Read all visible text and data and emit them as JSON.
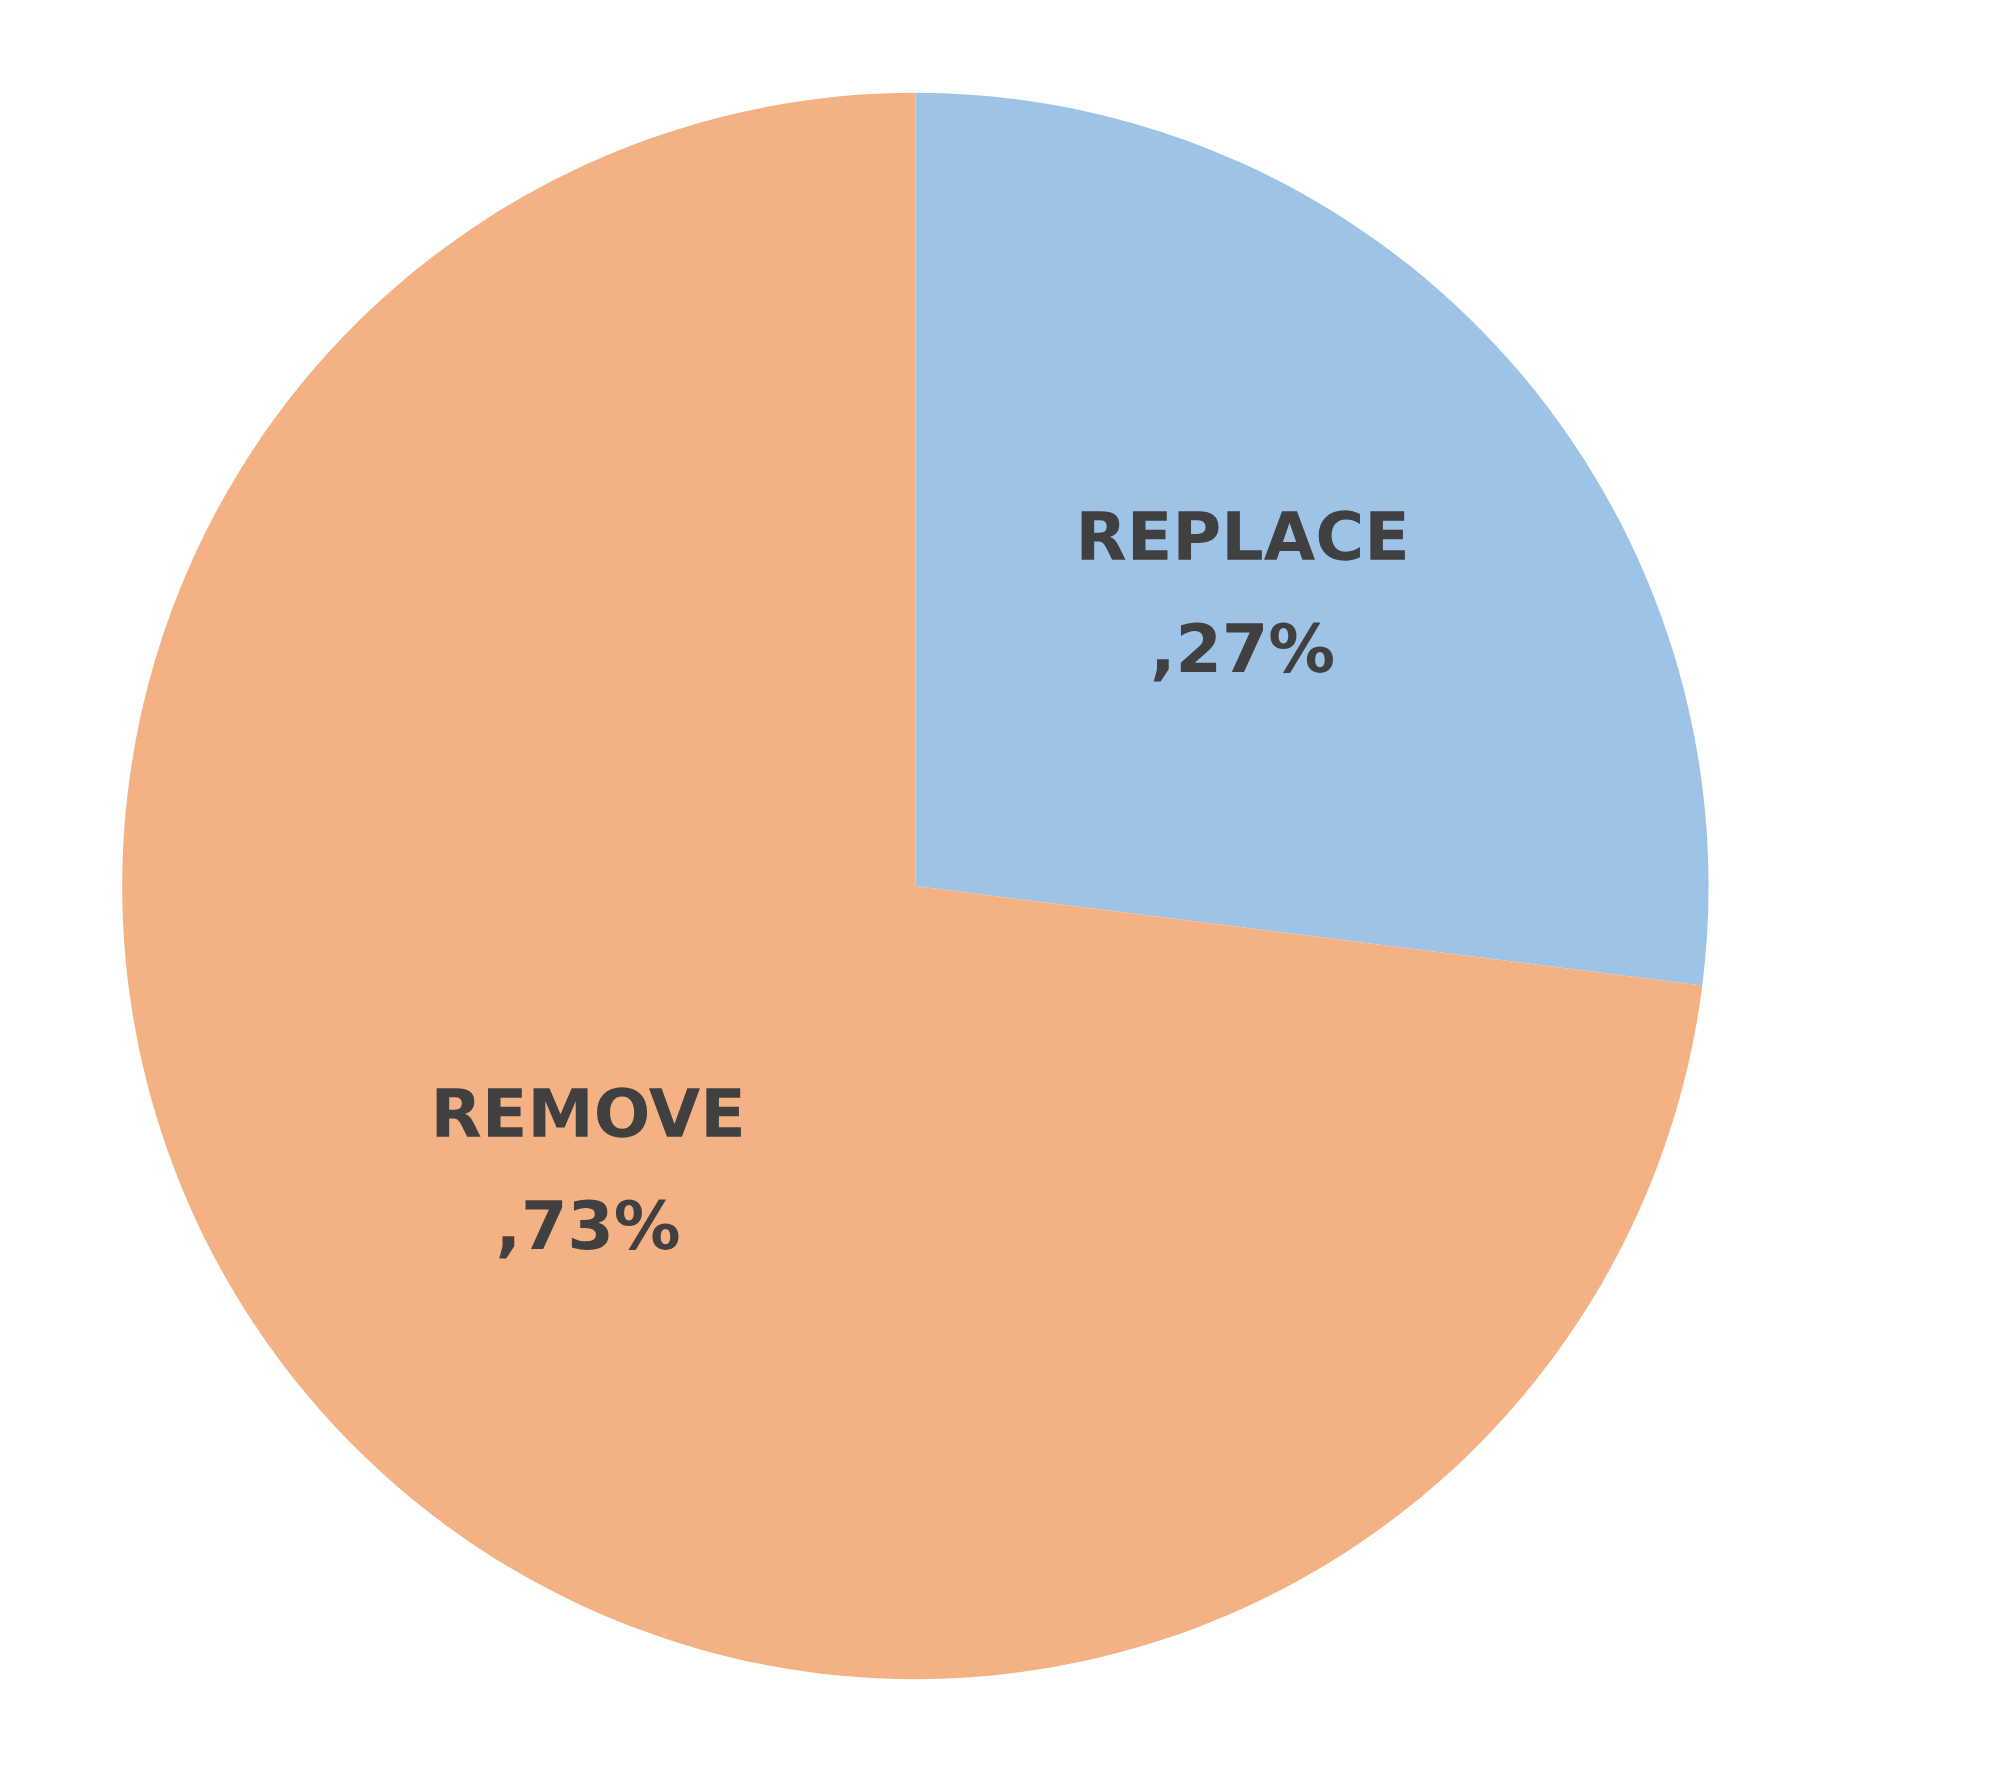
{
  "chart_data": {
    "type": "pie",
    "categories": [
      "REPLACE",
      "REMOVE"
    ],
    "values": [
      27,
      73
    ],
    "colors": [
      "#9dc3e6",
      "#f4b183"
    ],
    "value_labels": [
      ",27%",
      ",73%"
    ]
  }
}
